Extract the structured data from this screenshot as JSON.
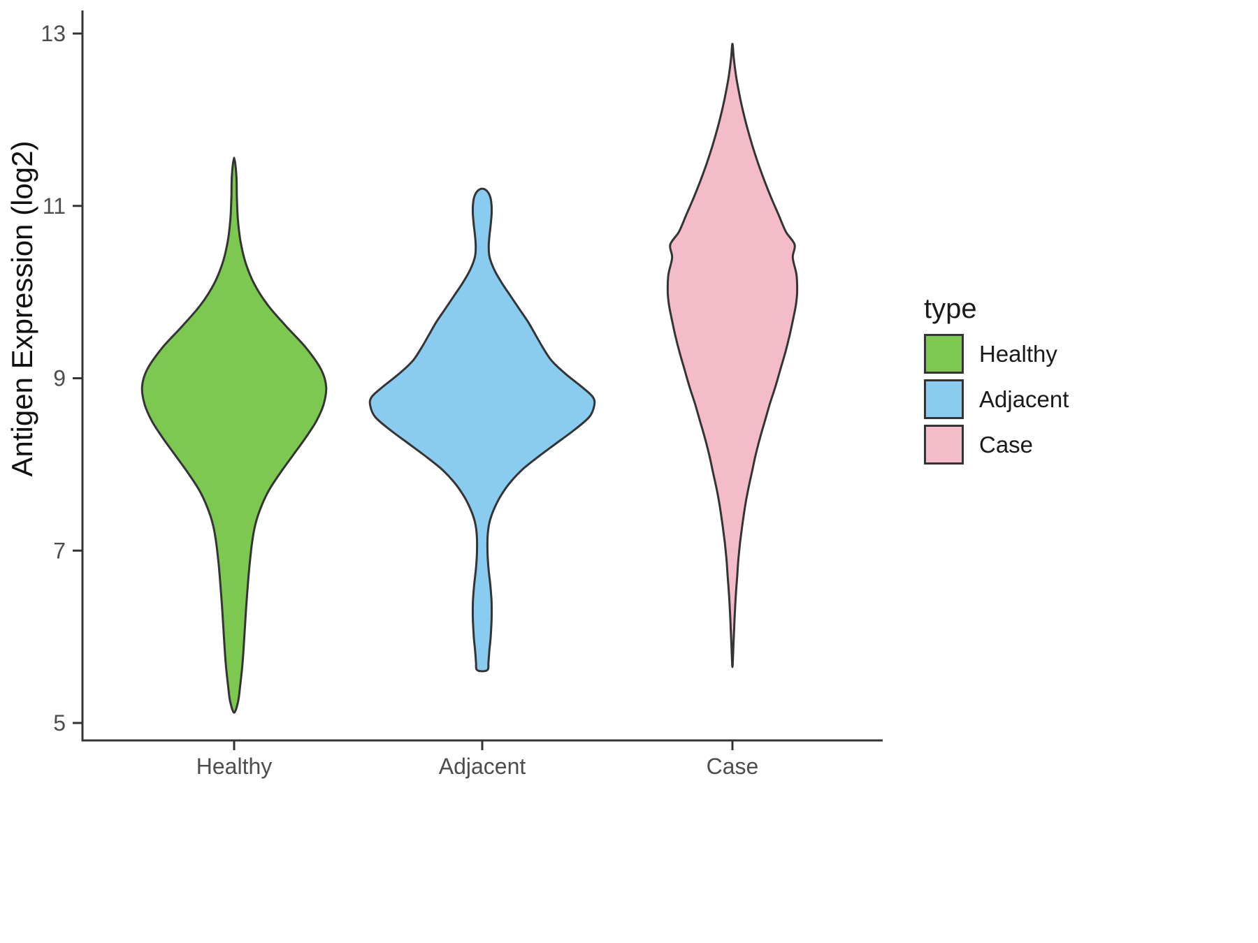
{
  "chart_data": {
    "type": "violin",
    "title": "",
    "xlabel": "",
    "ylabel": "Antigen Expression (log2)",
    "categories": [
      "Healthy",
      "Adjacent",
      "Case"
    ],
    "y_ticks": [
      13,
      11,
      9,
      7,
      5
    ],
    "ylim": [
      4.85,
      13.15
    ],
    "grid": false,
    "outline_color": "#343434",
    "legend": {
      "title": "type",
      "position": "right",
      "entries": [
        {
          "label": "Healthy",
          "color": "#7CC850"
        },
        {
          "label": "Adjacent",
          "color": "#89CCF0"
        },
        {
          "label": "Case",
          "color": "#F4BCC9"
        }
      ]
    },
    "series": [
      {
        "name": "Healthy",
        "color": "#7CC850",
        "y_range": [
          5.12,
          11.56
        ],
        "peak_y": 8.9,
        "profile": [
          [
            11.56,
            0.0
          ],
          [
            11.35,
            0.018
          ],
          [
            11.1,
            0.022
          ],
          [
            10.85,
            0.03
          ],
          [
            10.6,
            0.05
          ],
          [
            10.35,
            0.09
          ],
          [
            10.1,
            0.16
          ],
          [
            9.85,
            0.27
          ],
          [
            9.6,
            0.42
          ],
          [
            9.35,
            0.58
          ],
          [
            9.1,
            0.7
          ],
          [
            8.9,
            0.74
          ],
          [
            8.7,
            0.72
          ],
          [
            8.5,
            0.66
          ],
          [
            8.3,
            0.57
          ],
          [
            8.1,
            0.47
          ],
          [
            7.9,
            0.37
          ],
          [
            7.7,
            0.28
          ],
          [
            7.5,
            0.215
          ],
          [
            7.3,
            0.17
          ],
          [
            7.1,
            0.145
          ],
          [
            6.85,
            0.125
          ],
          [
            6.6,
            0.11
          ],
          [
            6.3,
            0.095
          ],
          [
            6.0,
            0.082
          ],
          [
            5.7,
            0.068
          ],
          [
            5.45,
            0.05
          ],
          [
            5.25,
            0.032
          ],
          [
            5.12,
            0.0
          ]
        ]
      },
      {
        "name": "Adjacent",
        "color": "#89CCF0",
        "y_range": [
          5.6,
          11.2
        ],
        "peak_y": 8.7,
        "profile": [
          [
            11.2,
            0.0
          ],
          [
            11.17,
            0.04
          ],
          [
            11.1,
            0.065
          ],
          [
            11.0,
            0.075
          ],
          [
            10.9,
            0.075
          ],
          [
            10.78,
            0.068
          ],
          [
            10.65,
            0.058
          ],
          [
            10.52,
            0.052
          ],
          [
            10.4,
            0.06
          ],
          [
            10.25,
            0.1
          ],
          [
            10.1,
            0.16
          ],
          [
            9.95,
            0.23
          ],
          [
            9.8,
            0.3
          ],
          [
            9.65,
            0.37
          ],
          [
            9.5,
            0.43
          ],
          [
            9.35,
            0.49
          ],
          [
            9.2,
            0.56
          ],
          [
            9.05,
            0.67
          ],
          [
            8.9,
            0.8
          ],
          [
            8.78,
            0.89
          ],
          [
            8.68,
            0.9
          ],
          [
            8.55,
            0.86
          ],
          [
            8.4,
            0.74
          ],
          [
            8.25,
            0.6
          ],
          [
            8.1,
            0.46
          ],
          [
            7.95,
            0.33
          ],
          [
            7.8,
            0.23
          ],
          [
            7.65,
            0.155
          ],
          [
            7.5,
            0.1
          ],
          [
            7.35,
            0.062
          ],
          [
            7.2,
            0.045
          ],
          [
            7.0,
            0.042
          ],
          [
            6.8,
            0.05
          ],
          [
            6.6,
            0.065
          ],
          [
            6.4,
            0.075
          ],
          [
            6.2,
            0.075
          ],
          [
            6.0,
            0.068
          ],
          [
            5.85,
            0.058
          ],
          [
            5.7,
            0.05
          ],
          [
            5.62,
            0.045
          ],
          [
            5.6,
            0.0
          ]
        ]
      },
      {
        "name": "Case",
        "color": "#F4BCC9",
        "y_range": [
          5.65,
          12.88
        ],
        "peak_y": 10.1,
        "profile": [
          [
            12.88,
            0.0
          ],
          [
            12.7,
            0.012
          ],
          [
            12.5,
            0.03
          ],
          [
            12.3,
            0.055
          ],
          [
            12.1,
            0.085
          ],
          [
            11.9,
            0.12
          ],
          [
            11.7,
            0.16
          ],
          [
            11.5,
            0.205
          ],
          [
            11.3,
            0.255
          ],
          [
            11.1,
            0.31
          ],
          [
            10.9,
            0.37
          ],
          [
            10.7,
            0.43
          ],
          [
            10.55,
            0.5
          ],
          [
            10.4,
            0.485
          ],
          [
            10.2,
            0.515
          ],
          [
            10.0,
            0.52
          ],
          [
            9.85,
            0.51
          ],
          [
            9.7,
            0.49
          ],
          [
            9.5,
            0.46
          ],
          [
            9.3,
            0.425
          ],
          [
            9.1,
            0.385
          ],
          [
            8.9,
            0.345
          ],
          [
            8.7,
            0.3
          ],
          [
            8.5,
            0.26
          ],
          [
            8.3,
            0.22
          ],
          [
            8.1,
            0.185
          ],
          [
            7.9,
            0.155
          ],
          [
            7.7,
            0.125
          ],
          [
            7.5,
            0.1
          ],
          [
            7.3,
            0.08
          ],
          [
            7.1,
            0.062
          ],
          [
            6.9,
            0.048
          ],
          [
            6.7,
            0.038
          ],
          [
            6.5,
            0.028
          ],
          [
            6.3,
            0.02
          ],
          [
            6.1,
            0.014
          ],
          [
            5.9,
            0.008
          ],
          [
            5.75,
            0.004
          ],
          [
            5.65,
            0.0
          ]
        ]
      }
    ]
  }
}
